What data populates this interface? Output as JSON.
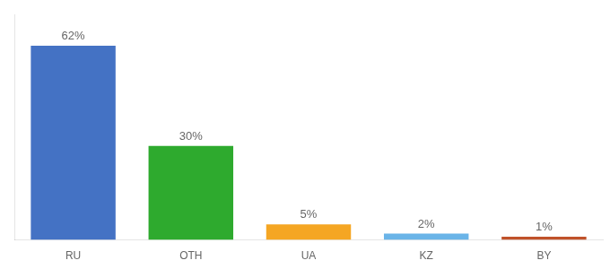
{
  "chart_data": {
    "type": "bar",
    "categories": [
      "RU",
      "OTH",
      "UA",
      "KZ",
      "BY"
    ],
    "values": [
      62,
      30,
      5,
      2,
      1
    ],
    "value_labels": [
      "62%",
      "30%",
      "5%",
      "2%",
      "1%"
    ],
    "colors": [
      "#4472c4",
      "#2eaa2e",
      "#f5a623",
      "#6ab4e8",
      "#c0522a"
    ],
    "ylim": [
      0,
      72
    ],
    "tick_labels": "x",
    "grid": false,
    "data_labels": true
  }
}
